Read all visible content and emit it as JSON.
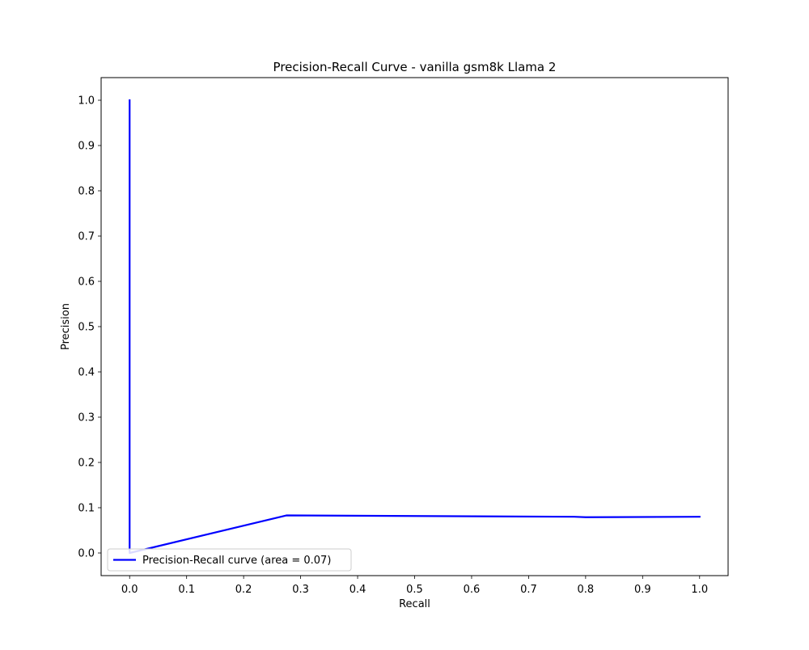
{
  "chart_data": {
    "type": "line",
    "title": "Precision-Recall Curve - vanilla gsm8k Llama 2",
    "xlabel": "Recall",
    "ylabel": "Precision",
    "xlim": [
      -0.05,
      1.05
    ],
    "ylim": [
      -0.05,
      1.05
    ],
    "xticks": [
      0.0,
      0.1,
      0.2,
      0.3,
      0.4,
      0.5,
      0.6,
      0.7,
      0.8,
      0.9,
      1.0
    ],
    "xtick_labels": [
      "0.0",
      "0.1",
      "0.2",
      "0.3",
      "0.4",
      "0.5",
      "0.6",
      "0.7",
      "0.8",
      "0.9",
      "1.0"
    ],
    "yticks": [
      0.0,
      0.1,
      0.2,
      0.3,
      0.4,
      0.5,
      0.6,
      0.7,
      0.8,
      0.9,
      1.0
    ],
    "ytick_labels": [
      "0.0",
      "0.1",
      "0.2",
      "0.3",
      "0.4",
      "0.5",
      "0.6",
      "0.7",
      "0.8",
      "0.9",
      "1.0"
    ],
    "grid": false,
    "legend_position": "lower-left",
    "series": [
      {
        "name": "Precision-Recall curve (area = 0.07)",
        "color": "#0000ff",
        "x": [
          0.0,
          0.0,
          0.275,
          0.78,
          0.8,
          1.0
        ],
        "y": [
          1.0,
          0.0,
          0.083,
          0.08,
          0.079,
          0.08
        ]
      }
    ]
  }
}
